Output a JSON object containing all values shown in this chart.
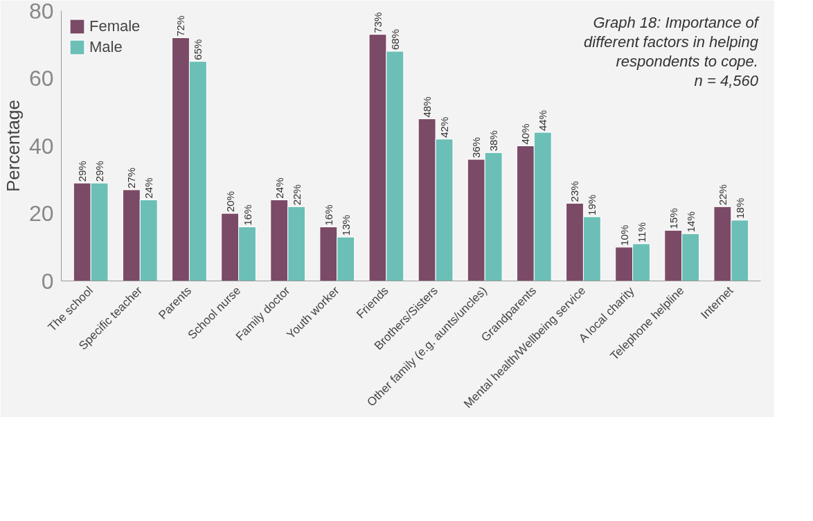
{
  "chart_data": {
    "type": "bar",
    "title": "Graph 18: Importance of different factors in helping respondents to cope.",
    "subtitle": "n = 4,560",
    "ylabel": "Percentage",
    "categories": [
      "The school",
      "Specific teacher",
      "Parents",
      "School nurse",
      "Family doctor",
      "Youth worker",
      "Friends",
      "Brothers/Sisters",
      "Other family (e.g. aunts/uncles)",
      "Grandparents",
      "Mental health/Wellbeing service",
      "A local charity",
      "Telephone helpline",
      "Internet"
    ],
    "series": [
      {
        "name": "Female",
        "color": "#7b4a66",
        "values": [
          29,
          27,
          72,
          20,
          24,
          16,
          73,
          48,
          36,
          40,
          23,
          10,
          15,
          22
        ],
        "value_labels": [
          "29%",
          "27%",
          "72%",
          "20%",
          "24%",
          "16%",
          "73%",
          "48%",
          "36%",
          "40%",
          "23%",
          "10%",
          "15%",
          "22%"
        ]
      },
      {
        "name": "Male",
        "color": "#6bbfb6",
        "values": [
          29,
          24,
          65,
          16,
          22,
          13,
          68,
          42,
          38,
          44,
          19,
          11,
          14,
          18
        ],
        "value_labels": [
          "29%",
          "24%",
          "65%",
          "16%",
          "22%",
          "13%",
          "68%",
          "42%",
          "38%",
          "44%",
          "19%",
          "11%",
          "14%",
          "18%"
        ]
      }
    ],
    "ylim": [
      0,
      80
    ],
    "yticks": [
      0,
      20,
      40,
      60,
      80
    ],
    "grid": false,
    "legend": "top left"
  }
}
